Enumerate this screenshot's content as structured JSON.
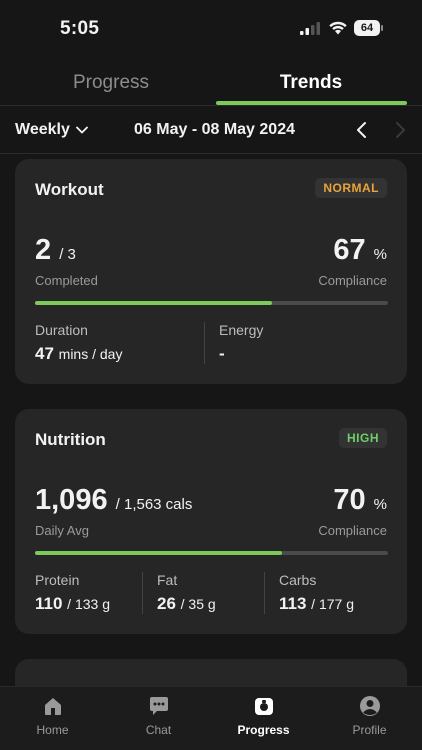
{
  "status_bar": {
    "time": "5:05",
    "battery": "64"
  },
  "tabs": [
    {
      "label": "Progress",
      "active": false
    },
    {
      "label": "Trends",
      "active": true
    }
  ],
  "date_bar": {
    "period": "Weekly",
    "range": "06 May - 08 May 2024"
  },
  "workout": {
    "title": "Workout",
    "badge": "NORMAL",
    "completed_value": "2",
    "completed_total": "/ 3",
    "completed_label": "Completed",
    "compliance_value": "67",
    "compliance_unit": "%",
    "compliance_label": "Compliance",
    "progress_fraction": 0.67,
    "duration_label": "Duration",
    "duration_value": "47",
    "duration_unit": "mins / day",
    "energy_label": "Energy",
    "energy_value": "-"
  },
  "nutrition": {
    "title": "Nutrition",
    "badge": "HIGH",
    "avg_value": "1,096",
    "avg_total": "/ 1,563 cals",
    "avg_label": "Daily Avg",
    "compliance_value": "70",
    "compliance_unit": "%",
    "compliance_label": "Compliance",
    "progress_fraction": 0.7,
    "protein_label": "Protein",
    "protein_value": "110",
    "protein_total": "/ 133 g",
    "fat_label": "Fat",
    "fat_value": "26",
    "fat_total": "/ 35 g",
    "carbs_label": "Carbs",
    "carbs_value": "113",
    "carbs_total": "/ 177 g"
  },
  "bottom_nav": [
    {
      "label": "Home",
      "icon": "home-icon",
      "active": false
    },
    {
      "label": "Chat",
      "icon": "chat-icon",
      "active": false
    },
    {
      "label": "Progress",
      "icon": "progress-icon",
      "active": true
    },
    {
      "label": "Profile",
      "icon": "profile-icon",
      "active": false
    }
  ],
  "colors": {
    "accent": "#7ccb5a",
    "normal_badge": "#e8a43a",
    "high_badge": "#6ecf6a",
    "card": "#262626",
    "background": "#161616"
  }
}
